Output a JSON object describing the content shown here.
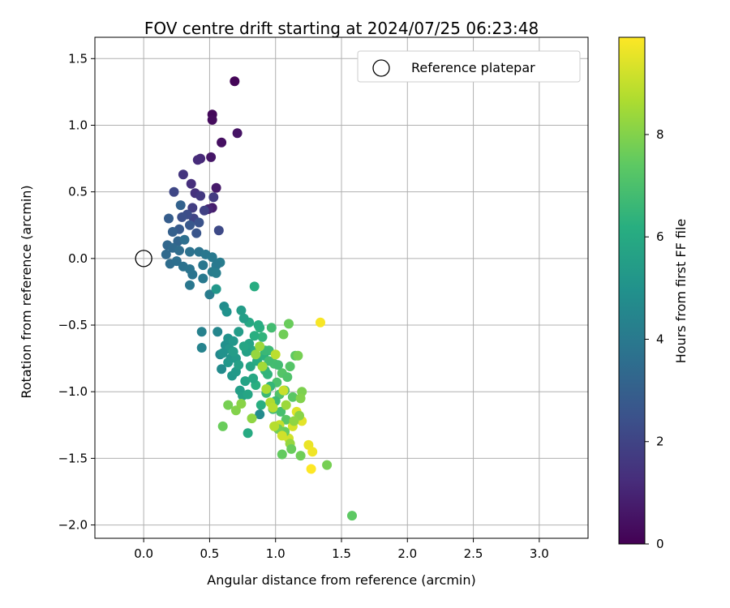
{
  "chart_data": {
    "type": "scatter",
    "title": "FOV centre drift starting at 2024/07/25 06:23:48",
    "xlabel": "Angular distance from reference (arcmin)",
    "ylabel": "Rotation from reference (arcmin)",
    "xlim": [
      -0.37,
      3.37
    ],
    "ylim": [
      -2.1,
      1.66
    ],
    "xticks": [
      0.0,
      0.5,
      1.0,
      1.5,
      2.0,
      2.5,
      3.0
    ],
    "yticks": [
      1.5,
      1.0,
      0.5,
      0.0,
      -0.5,
      -1.0,
      -1.5,
      -2.0
    ],
    "xtick_labels": [
      "0.0",
      "0.5",
      "1.0",
      "1.5",
      "2.0",
      "2.5",
      "3.0"
    ],
    "ytick_labels": [
      "1.5",
      "1.0",
      "0.5",
      "0.0",
      "−0.5",
      "−1.0",
      "−1.5",
      "−2.0"
    ],
    "grid": true,
    "legend": {
      "position": "top-right",
      "entries": [
        {
          "label": "Reference platepar",
          "marker": "open-circle"
        }
      ]
    },
    "reference_point": {
      "x": 0.0,
      "y": 0.0
    },
    "colorbar": {
      "label": "Hours from first FF file",
      "colormap": "viridis",
      "range": [
        0,
        9.9
      ],
      "ticks": [
        0,
        2,
        4,
        6,
        8
      ],
      "tick_labels": [
        "0",
        "2",
        "4",
        "6",
        "8"
      ]
    },
    "points": [
      [
        0.69,
        1.33,
        0.1
      ],
      [
        0.52,
        1.08,
        0.2
      ],
      [
        0.52,
        1.04,
        0.3
      ],
      [
        0.59,
        0.87,
        0.4
      ],
      [
        0.71,
        0.94,
        0.5
      ],
      [
        0.51,
        0.76,
        0.6
      ],
      [
        0.55,
        0.53,
        0.7
      ],
      [
        0.52,
        0.38,
        0.8
      ],
      [
        0.49,
        0.37,
        1.0
      ],
      [
        0.43,
        0.75,
        1.1
      ],
      [
        0.41,
        0.74,
        1.2
      ],
      [
        0.36,
        0.56,
        1.3
      ],
      [
        0.39,
        0.49,
        1.4
      ],
      [
        0.3,
        0.63,
        1.5
      ],
      [
        0.43,
        0.47,
        1.6
      ],
      [
        0.53,
        0.46,
        1.7
      ],
      [
        0.37,
        0.38,
        1.8
      ],
      [
        0.46,
        0.36,
        1.9
      ],
      [
        0.38,
        0.3,
        2.0
      ],
      [
        0.23,
        0.5,
        2.1
      ],
      [
        0.57,
        0.21,
        2.2
      ],
      [
        0.33,
        0.33,
        2.3
      ],
      [
        0.29,
        0.31,
        2.4
      ],
      [
        0.42,
        0.27,
        2.5
      ],
      [
        0.4,
        0.19,
        2.6
      ],
      [
        0.35,
        0.25,
        2.7
      ],
      [
        0.27,
        0.22,
        2.8
      ],
      [
        0.19,
        0.3,
        2.9
      ],
      [
        0.22,
        0.2,
        3.0
      ],
      [
        0.28,
        0.4,
        3.1
      ],
      [
        0.26,
        0.13,
        3.2
      ],
      [
        0.18,
        0.1,
        3.3
      ],
      [
        0.22,
        0.08,
        3.4
      ],
      [
        0.27,
        0.06,
        3.5
      ],
      [
        0.31,
        0.14,
        3.6
      ],
      [
        0.35,
        0.05,
        3.7
      ],
      [
        0.42,
        0.05,
        3.8
      ],
      [
        0.47,
        0.03,
        3.9
      ],
      [
        0.52,
        0.01,
        4.0
      ],
      [
        0.58,
        -0.03,
        4.1
      ],
      [
        0.17,
        0.03,
        3.4
      ],
      [
        0.2,
        -0.04,
        3.5
      ],
      [
        0.25,
        -0.02,
        3.6
      ],
      [
        0.3,
        -0.06,
        3.7
      ],
      [
        0.35,
        -0.08,
        3.8
      ],
      [
        0.45,
        -0.05,
        3.9
      ],
      [
        0.55,
        -0.05,
        4.0
      ],
      [
        0.52,
        -0.1,
        4.1
      ],
      [
        0.35,
        -0.2,
        3.9
      ],
      [
        0.45,
        -0.15,
        4.0
      ],
      [
        0.5,
        -0.27,
        4.1
      ],
      [
        0.55,
        -0.11,
        4.2
      ],
      [
        0.37,
        -0.12,
        3.8
      ],
      [
        0.44,
        -0.55,
        4.3
      ],
      [
        0.44,
        -0.67,
        4.4
      ],
      [
        0.55,
        -0.23,
        5.2
      ],
      [
        0.56,
        -0.55,
        4.5
      ],
      [
        0.58,
        -0.72,
        4.6
      ],
      [
        0.59,
        -0.83,
        4.7
      ],
      [
        0.61,
        -0.36,
        4.8
      ],
      [
        0.62,
        -0.65,
        4.9
      ],
      [
        0.64,
        -0.6,
        5.0
      ],
      [
        0.66,
        -0.75,
        5.1
      ],
      [
        0.67,
        -0.88,
        5.2
      ],
      [
        0.7,
        -0.85,
        5.3
      ],
      [
        0.72,
        -0.55,
        5.4
      ],
      [
        0.73,
        -0.99,
        5.5
      ],
      [
        0.75,
        -1.03,
        5.6
      ],
      [
        0.77,
        -0.92,
        5.7
      ],
      [
        0.79,
        -1.02,
        5.8
      ],
      [
        0.8,
        -0.48,
        5.9
      ],
      [
        0.82,
        -0.69,
        6.0
      ],
      [
        0.84,
        -0.21,
        6.1
      ],
      [
        0.85,
        -0.95,
        6.2
      ],
      [
        0.88,
        -0.52,
        6.3
      ],
      [
        0.9,
        -0.59,
        6.4
      ],
      [
        0.92,
        -0.84,
        6.5
      ],
      [
        0.93,
        -1.01,
        6.6
      ],
      [
        0.95,
        -0.69,
        6.7
      ],
      [
        0.97,
        -0.52,
        6.8
      ],
      [
        0.99,
        -0.79,
        6.9
      ],
      [
        1.01,
        -0.93,
        7.0
      ],
      [
        1.03,
        -1.02,
        7.1
      ],
      [
        1.05,
        -0.86,
        7.2
      ],
      [
        1.08,
        -1.21,
        7.3
      ],
      [
        0.63,
        -0.4,
        5.0
      ],
      [
        0.65,
        -0.68,
        5.1
      ],
      [
        0.68,
        -0.62,
        5.2
      ],
      [
        0.7,
        -0.75,
        5.3
      ],
      [
        0.74,
        -0.39,
        5.4
      ],
      [
        0.76,
        -0.45,
        5.5
      ],
      [
        0.78,
        -0.7,
        5.6
      ],
      [
        0.8,
        -0.64,
        5.7
      ],
      [
        0.81,
        -0.81,
        5.8
      ],
      [
        0.83,
        -0.9,
        5.9
      ],
      [
        0.86,
        -0.77,
        6.0
      ],
      [
        0.87,
        -0.5,
        6.1
      ],
      [
        0.89,
        -1.1,
        6.2
      ],
      [
        0.91,
        -0.73,
        6.3
      ],
      [
        0.94,
        -0.87,
        6.4
      ],
      [
        0.96,
        -0.96,
        6.5
      ],
      [
        0.98,
        -1.13,
        6.6
      ],
      [
        1.0,
        -1.07,
        6.7
      ],
      [
        1.02,
        -0.8,
        6.8
      ],
      [
        1.04,
        -1.15,
        6.9
      ],
      [
        1.07,
        -0.99,
        7.0
      ],
      [
        1.09,
        -0.89,
        7.1
      ],
      [
        1.11,
        -0.81,
        7.2
      ],
      [
        1.13,
        -1.04,
        7.3
      ],
      [
        1.15,
        -0.73,
        7.4
      ],
      [
        0.6,
        -0.71,
        5.0
      ],
      [
        0.64,
        -0.78,
        5.2
      ],
      [
        0.68,
        -0.7,
        5.4
      ],
      [
        0.72,
        -0.8,
        5.6
      ],
      [
        0.76,
        -0.66,
        5.8
      ],
      [
        0.79,
        -1.31,
        6.0
      ],
      [
        0.84,
        -0.58,
        6.2
      ],
      [
        0.88,
        -1.17,
        4.7
      ],
      [
        0.92,
        -0.69,
        6.6
      ],
      [
        0.95,
        -0.77,
        6.8
      ],
      [
        0.6,
        -1.26,
        7.6
      ],
      [
        0.64,
        -1.1,
        7.8
      ],
      [
        0.7,
        -1.14,
        8.0
      ],
      [
        0.74,
        -1.09,
        8.1
      ],
      [
        0.82,
        -1.2,
        8.2
      ],
      [
        0.85,
        -0.72,
        8.3
      ],
      [
        0.88,
        -0.66,
        8.4
      ],
      [
        0.9,
        -0.81,
        8.5
      ],
      [
        0.93,
        -0.98,
        8.6
      ],
      [
        0.96,
        -1.08,
        8.7
      ],
      [
        0.98,
        -1.12,
        8.8
      ],
      [
        1.0,
        -0.72,
        8.9
      ],
      [
        1.03,
        -1.25,
        9.0
      ],
      [
        1.06,
        -0.99,
        9.1
      ],
      [
        1.1,
        -1.35,
        9.2
      ],
      [
        1.13,
        -1.26,
        9.3
      ],
      [
        1.16,
        -1.15,
        9.4
      ],
      [
        1.2,
        -1.22,
        9.5
      ],
      [
        1.25,
        -1.4,
        9.6
      ],
      [
        1.28,
        -1.45,
        9.7
      ],
      [
        1.34,
        -0.48,
        9.8
      ],
      [
        1.27,
        -1.58,
        9.9
      ],
      [
        1.1,
        -0.49,
        7.6
      ],
      [
        1.06,
        -0.57,
        7.7
      ],
      [
        1.17,
        -0.73,
        7.8
      ],
      [
        1.2,
        -1.0,
        7.9
      ],
      [
        1.19,
        -1.05,
        8.0
      ],
      [
        1.18,
        -1.18,
        8.1
      ],
      [
        1.14,
        -1.22,
        8.2
      ],
      [
        1.11,
        -1.39,
        8.3
      ],
      [
        1.05,
        -1.47,
        7.5
      ],
      [
        1.12,
        -1.43,
        7.6
      ],
      [
        1.19,
        -1.48,
        7.7
      ],
      [
        1.39,
        -1.55,
        7.8
      ],
      [
        1.58,
        -1.93,
        7.4
      ],
      [
        1.07,
        -1.3,
        7.6
      ],
      [
        1.02,
        -1.28,
        7.7
      ],
      [
        0.99,
        -1.26,
        8.8
      ],
      [
        1.05,
        -1.33,
        9.2
      ],
      [
        1.08,
        -1.1,
        8.4
      ]
    ]
  }
}
